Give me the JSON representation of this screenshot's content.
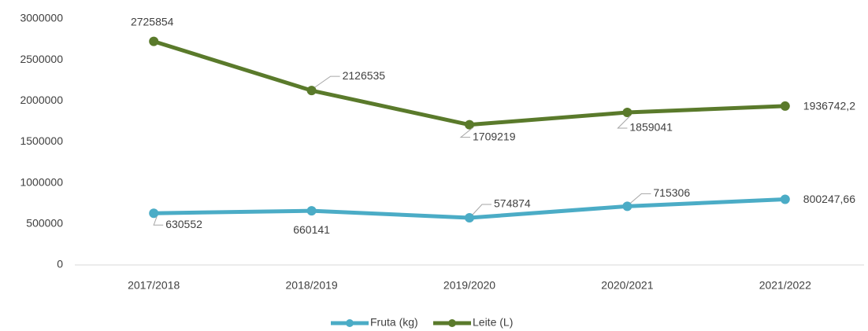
{
  "chart_data": {
    "type": "line",
    "categories": [
      "2017/2018",
      "2018/2019",
      "2019/2020",
      "2020/2021",
      "2021/2022"
    ],
    "series": [
      {
        "name": "Fruta (kg)",
        "color": "#4bacc6",
        "values": [
          630552,
          660141,
          574874,
          715306,
          800247.66
        ],
        "value_labels": [
          "630552",
          "660141",
          "574874",
          "715306",
          "800247,66"
        ]
      },
      {
        "name": "Leite (L)",
        "color": "#5a7a2b",
        "values": [
          2725854,
          2126535,
          1709219,
          1859041,
          1936742.2
        ],
        "value_labels": [
          "2725854",
          "2126535",
          "1709219",
          "1859041",
          "1936742,2"
        ]
      }
    ],
    "ylim": [
      0,
      3000000
    ],
    "yticks": [
      0,
      500000,
      1000000,
      1500000,
      2000000,
      2500000,
      3000000
    ],
    "grid": false,
    "legend": "bottom"
  }
}
